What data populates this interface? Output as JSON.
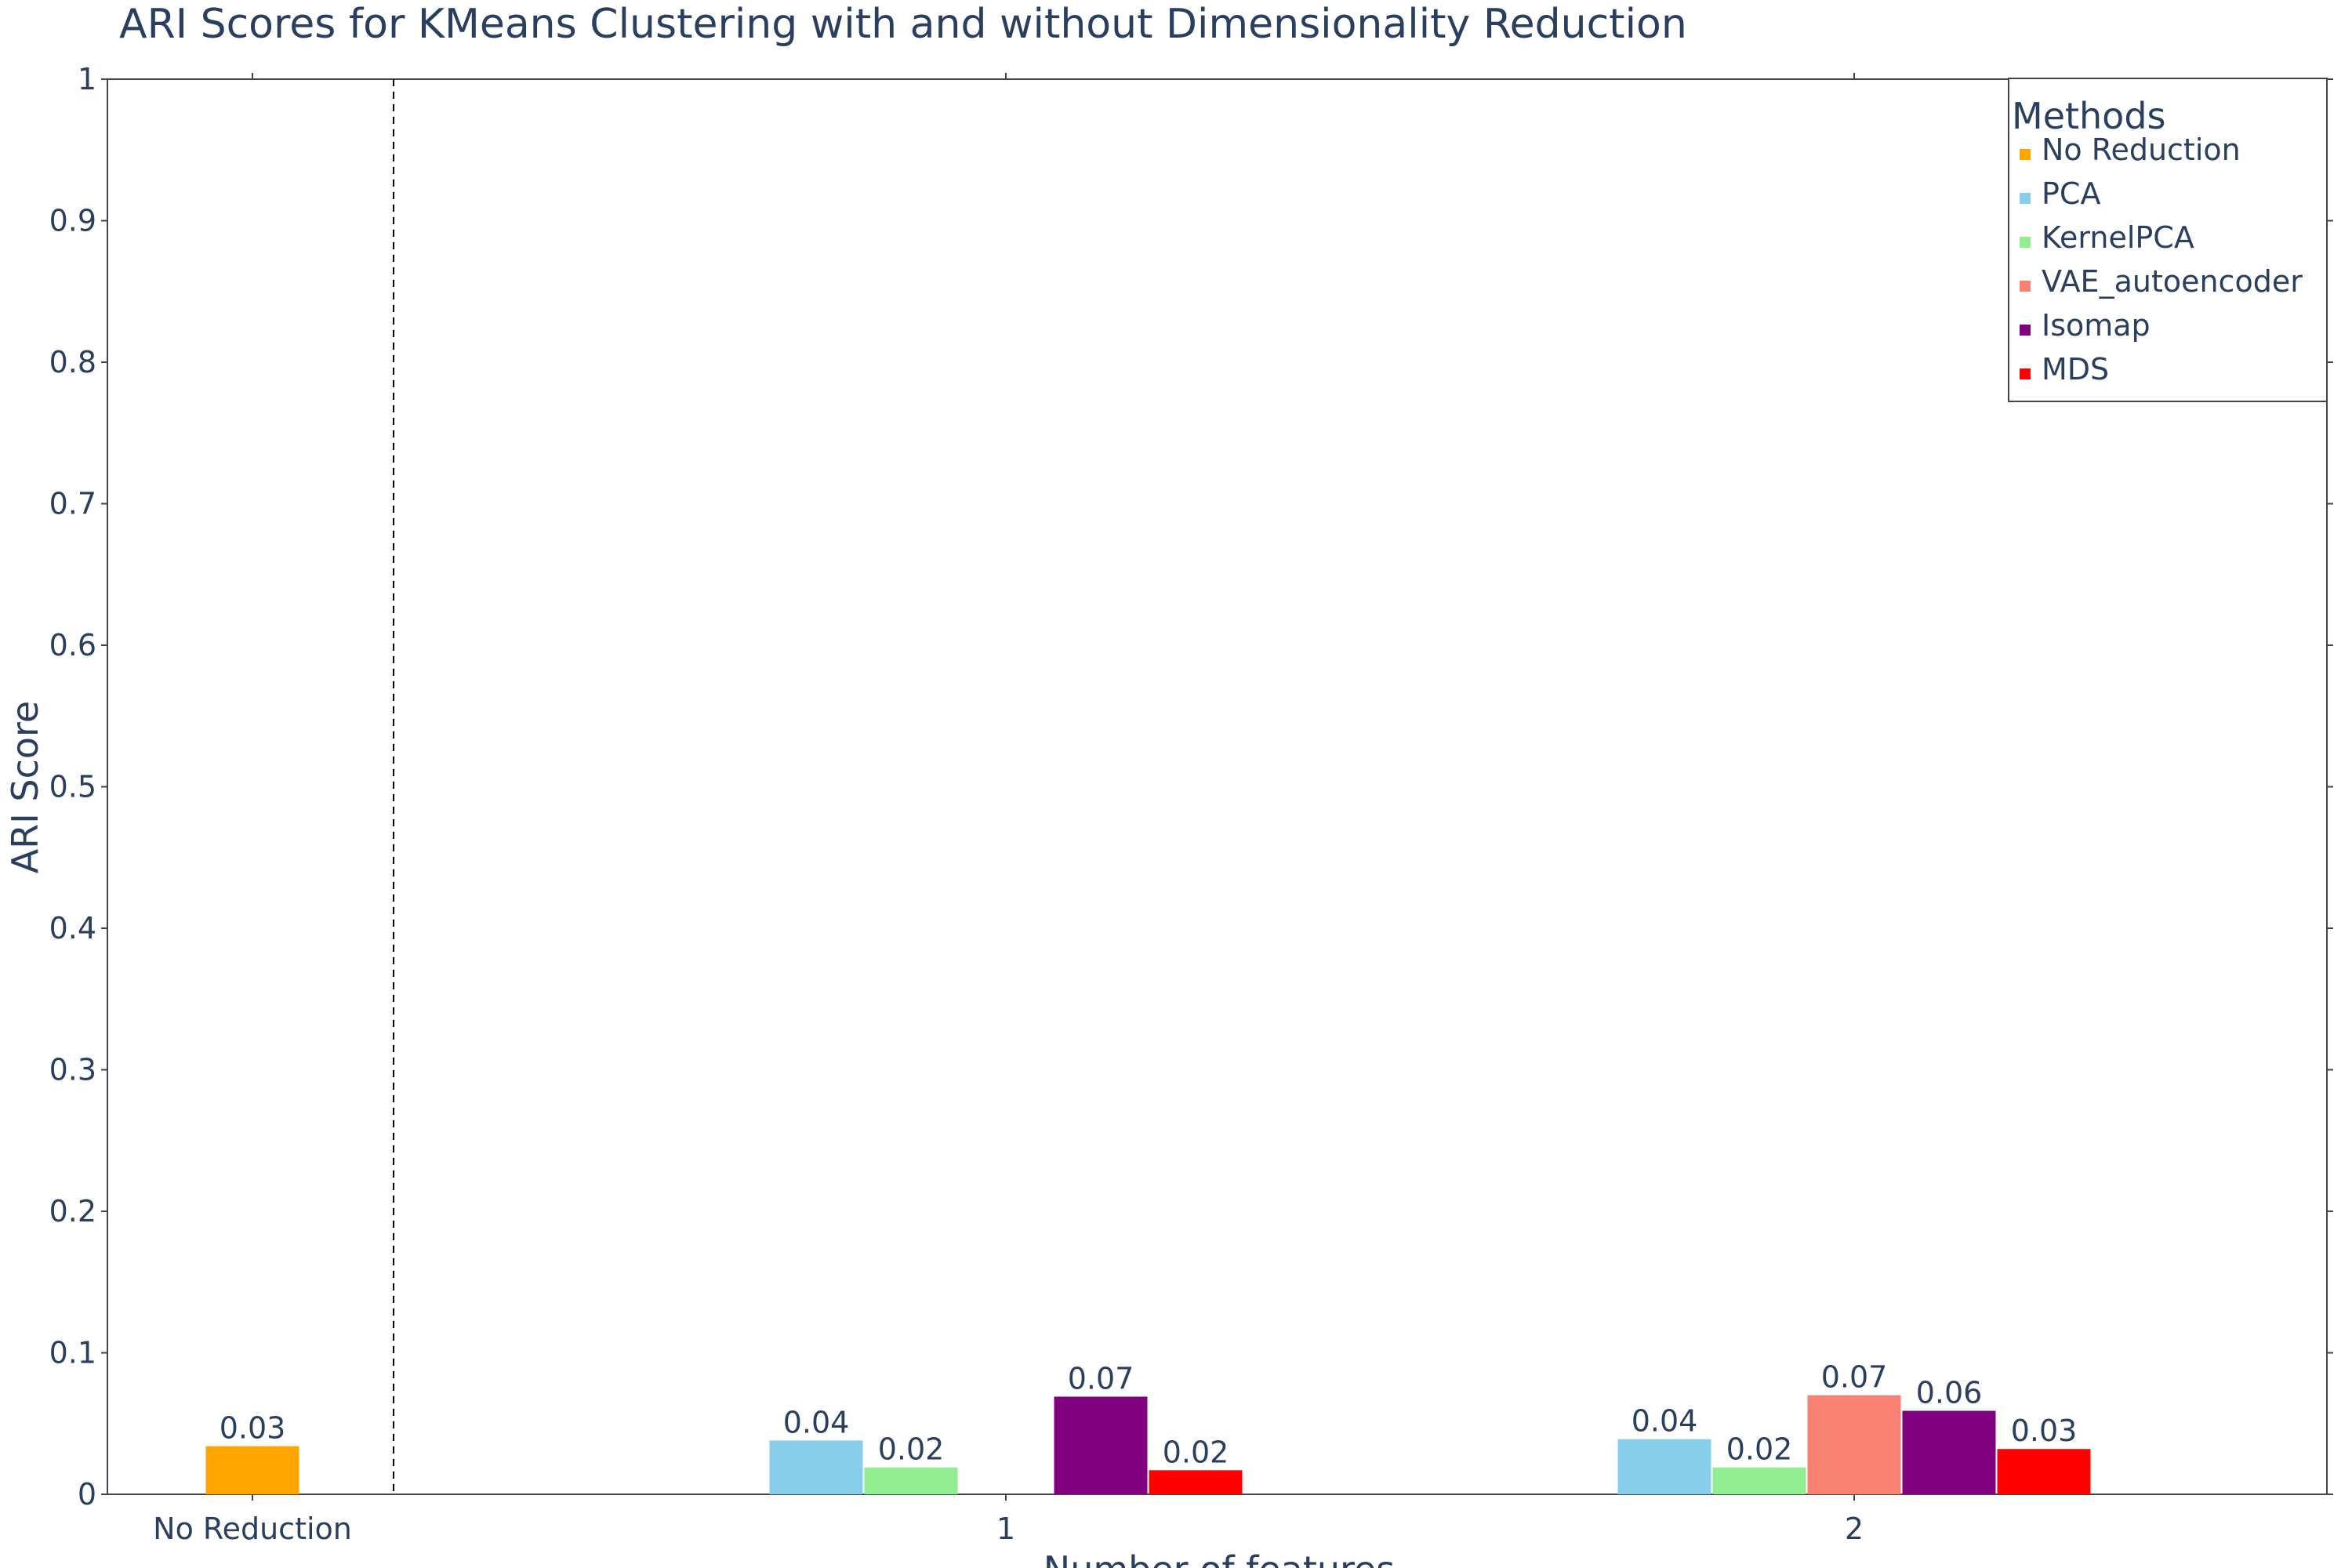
{
  "chart_data": {
    "type": "bar",
    "title": "ARI Scores for KMeans Clustering with and without Dimensionality Reduction",
    "xlabel": "Number of features",
    "ylabel": "ARI Score",
    "ylim": [
      0,
      1
    ],
    "y_ticks": [
      "0",
      "0.1",
      "0.2",
      "0.3",
      "0.4",
      "0.5",
      "0.6",
      "0.7",
      "0.8",
      "0.9",
      "1"
    ],
    "categories": [
      "No Reduction",
      "1",
      "2"
    ],
    "legend": {
      "title": "Methods",
      "placement": "top-right"
    },
    "grid": false,
    "divider_after_category": "No Reduction",
    "series": [
      {
        "name": "No Reduction",
        "color": "#FFA500",
        "values": [
          0.034,
          null,
          null
        ],
        "labels": [
          "0.03",
          null,
          null
        ]
      },
      {
        "name": "PCA",
        "color": "#87CEEB",
        "values": [
          null,
          0.038,
          0.039
        ],
        "labels": [
          null,
          "0.04",
          "0.04"
        ]
      },
      {
        "name": "KernelPCA",
        "color": "#90EE90",
        "values": [
          null,
          0.019,
          0.019
        ],
        "labels": [
          null,
          "0.02",
          "0.02"
        ]
      },
      {
        "name": "VAE_autoencoder",
        "color": "#FA8072",
        "values": [
          null,
          null,
          0.07
        ],
        "labels": [
          null,
          null,
          "0.07"
        ]
      },
      {
        "name": "Isomap",
        "color": "#800080",
        "values": [
          null,
          0.069,
          0.059
        ],
        "labels": [
          null,
          "0.07",
          "0.06"
        ]
      },
      {
        "name": "MDS",
        "color": "#FF0000",
        "values": [
          null,
          0.017,
          0.032
        ],
        "labels": [
          null,
          "0.02",
          "0.03"
        ]
      }
    ]
  }
}
